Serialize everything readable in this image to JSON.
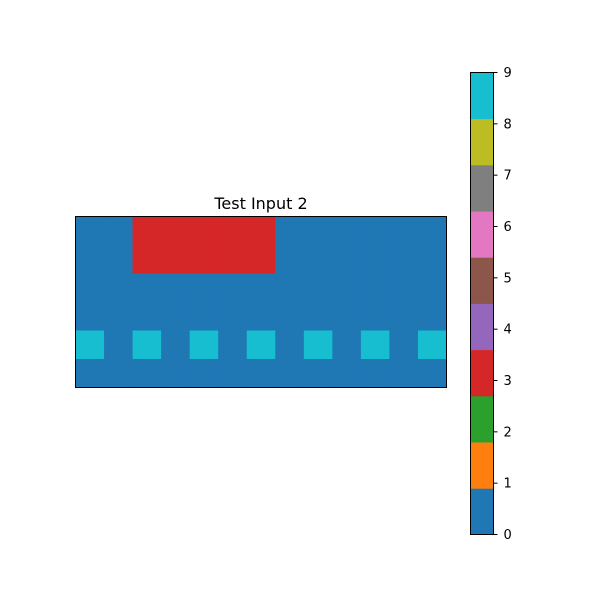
{
  "chart_data": {
    "type": "heatmap",
    "title": "Test Input 2",
    "rows": 6,
    "cols": 13,
    "grid": [
      [
        0,
        0,
        3,
        3,
        3,
        3,
        3,
        0,
        0,
        0,
        0,
        0,
        0
      ],
      [
        0,
        0,
        3,
        3,
        3,
        3,
        3,
        0,
        0,
        0,
        0,
        0,
        0
      ],
      [
        0,
        0,
        0,
        0,
        0,
        0,
        0,
        0,
        0,
        0,
        0,
        0,
        0
      ],
      [
        0,
        0,
        0,
        0,
        0,
        0,
        0,
        0,
        0,
        0,
        0,
        0,
        0
      ],
      [
        9,
        0,
        9,
        0,
        9,
        0,
        9,
        0,
        9,
        0,
        9,
        0,
        9
      ],
      [
        0,
        0,
        0,
        0,
        0,
        0,
        0,
        0,
        0,
        0,
        0,
        0,
        0
      ]
    ],
    "colorbar": {
      "min": 0,
      "max": 9,
      "ticks": [
        "0",
        "1",
        "2",
        "3",
        "4",
        "5",
        "6",
        "7",
        "8",
        "9"
      ],
      "colors": [
        "#1f77b4",
        "#ff7f0e",
        "#2ca02c",
        "#d62728",
        "#9467bd",
        "#8c564b",
        "#e377c2",
        "#7f7f7f",
        "#bcbd22",
        "#17becf"
      ]
    },
    "xticks": false,
    "yticks": false,
    "grid_lines": false
  }
}
